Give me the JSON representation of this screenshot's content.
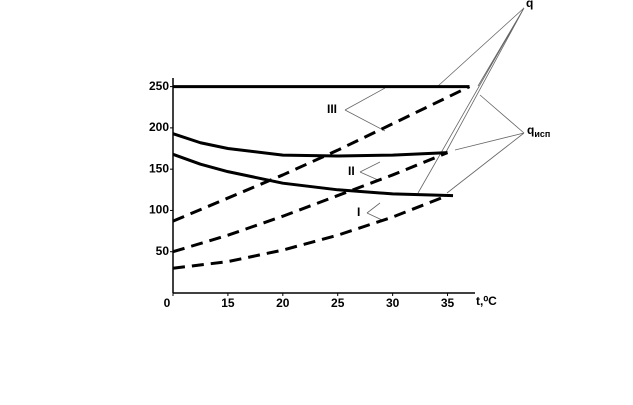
{
  "chart_data": {
    "type": "line",
    "x_label": "t,⁰C",
    "xlim": [
      10,
      37.5
    ],
    "ylim": [
      0,
      258
    ],
    "xticks": [
      {
        "value": 10,
        "label": "0"
      },
      15,
      20,
      25,
      30,
      35
    ],
    "yticks": [
      50,
      100,
      150,
      200,
      250
    ],
    "series": [
      {
        "color": "#000000",
        "dashed": false,
        "x": [
          10,
          37
        ],
        "values": [
          250,
          250
        ]
      },
      {
        "color": "#000000",
        "dashed": true,
        "x": [
          10,
          15,
          20,
          25,
          30,
          37
        ],
        "values": [
          87,
          115,
          143,
          173,
          205,
          250
        ]
      },
      {
        "color": "#000000",
        "dashed": false,
        "x": [
          10,
          12.5,
          15,
          20,
          25,
          30,
          35
        ],
        "values": [
          193,
          182,
          175,
          167,
          166,
          167,
          170
        ]
      },
      {
        "color": "#000000",
        "dashed": true,
        "x": [
          10,
          15,
          20,
          25,
          30,
          35
        ],
        "values": [
          50,
          70,
          93,
          118,
          143,
          170
        ]
      },
      {
        "color": "#000000",
        "dashed": false,
        "x": [
          10,
          12.5,
          15,
          20,
          25,
          30,
          35.5
        ],
        "values": [
          168,
          156,
          147,
          133,
          125,
          120,
          118
        ]
      },
      {
        "color": "#000000",
        "dashed": true,
        "x": [
          10,
          15,
          20,
          25,
          30,
          35
        ],
        "values": [
          30,
          38,
          52,
          70,
          92,
          118
        ]
      }
    ],
    "annotations": {
      "q": "q",
      "q_isp": {
        "main": "q",
        "sub": "исп"
      },
      "III": "III",
      "II": "II",
      "I": "I"
    }
  }
}
